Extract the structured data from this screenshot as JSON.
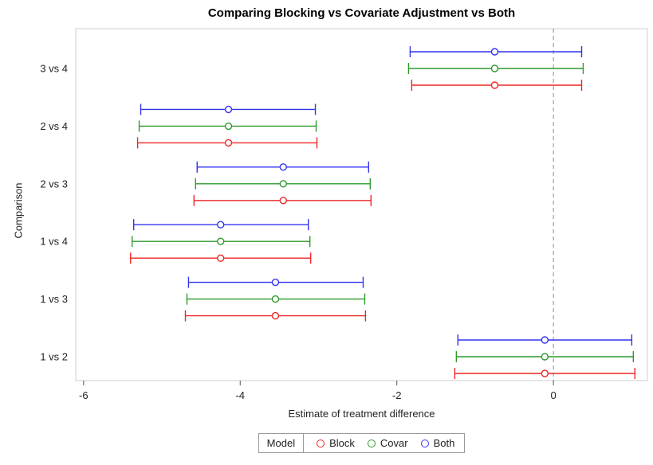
{
  "chart_data": {
    "type": "interval",
    "title": "Comparing Blocking vs Covariate Adjustment vs Both",
    "xlabel": "Estimate of treatment difference",
    "ylabel": "Comparison",
    "legend_title": "Model",
    "legend_position": "bottom",
    "grid": false,
    "xlim": [
      -6.1,
      1.2
    ],
    "xticks": [
      -6,
      -4,
      -2,
      0
    ],
    "reference_line": 0,
    "categories": [
      "3 vs 4",
      "2 vs 4",
      "2 vs 3",
      "1 vs 4",
      "1 vs 3",
      "1 vs 2"
    ],
    "series": [
      {
        "name": "Block",
        "color": "#ee2724",
        "points": [
          {
            "category": "3 vs 4",
            "estimate": -0.75,
            "lower": -1.81,
            "upper": 0.36
          },
          {
            "category": "2 vs 4",
            "estimate": -4.15,
            "lower": -5.31,
            "upper": -3.02
          },
          {
            "category": "2 vs 3",
            "estimate": -3.45,
            "lower": -4.59,
            "upper": -2.33
          },
          {
            "category": "1 vs 4",
            "estimate": -4.25,
            "lower": -5.4,
            "upper": -3.1
          },
          {
            "category": "1 vs 3",
            "estimate": -3.55,
            "lower": -4.7,
            "upper": -2.4
          },
          {
            "category": "1 vs 2",
            "estimate": -0.11,
            "lower": -1.26,
            "upper": 1.04
          }
        ]
      },
      {
        "name": "Covar",
        "color": "#2c9a2c",
        "points": [
          {
            "category": "3 vs 4",
            "estimate": -0.75,
            "lower": -1.85,
            "upper": 0.38
          },
          {
            "category": "2 vs 4",
            "estimate": -4.15,
            "lower": -5.29,
            "upper": -3.03
          },
          {
            "category": "2 vs 3",
            "estimate": -3.45,
            "lower": -4.57,
            "upper": -2.34
          },
          {
            "category": "1 vs 4",
            "estimate": -4.25,
            "lower": -5.38,
            "upper": -3.11
          },
          {
            "category": "1 vs 3",
            "estimate": -3.55,
            "lower": -4.68,
            "upper": -2.41
          },
          {
            "category": "1 vs 2",
            "estimate": -0.11,
            "lower": -1.24,
            "upper": 1.02
          }
        ]
      },
      {
        "name": "Both",
        "color": "#3333f2",
        "points": [
          {
            "category": "3 vs 4",
            "estimate": -0.75,
            "lower": -1.83,
            "upper": 0.36
          },
          {
            "category": "2 vs 4",
            "estimate": -4.15,
            "lower": -5.27,
            "upper": -3.04
          },
          {
            "category": "2 vs 3",
            "estimate": -3.45,
            "lower": -4.55,
            "upper": -2.36
          },
          {
            "category": "1 vs 4",
            "estimate": -4.25,
            "lower": -5.36,
            "upper": -3.13
          },
          {
            "category": "1 vs 3",
            "estimate": -3.55,
            "lower": -4.66,
            "upper": -2.43
          },
          {
            "category": "1 vs 2",
            "estimate": -0.11,
            "lower": -1.22,
            "upper": 1.0
          }
        ]
      }
    ]
  }
}
